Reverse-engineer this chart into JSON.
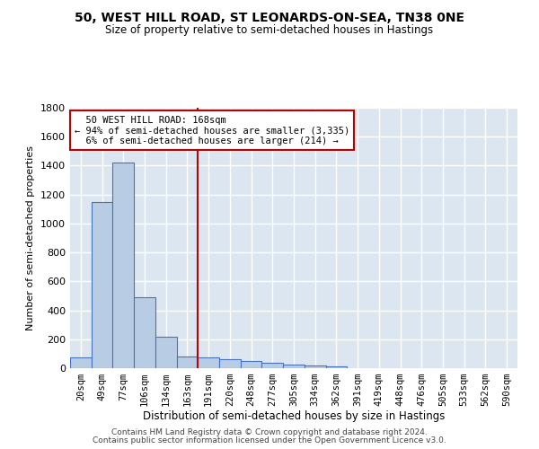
{
  "title": "50, WEST HILL ROAD, ST LEONARDS-ON-SEA, TN38 0NE",
  "subtitle": "Size of property relative to semi-detached houses in Hastings",
  "xlabel": "Distribution of semi-detached houses by size in Hastings",
  "ylabel": "Number of semi-detached properties",
  "categories": [
    "20sqm",
    "49sqm",
    "77sqm",
    "106sqm",
    "134sqm",
    "163sqm",
    "191sqm",
    "220sqm",
    "248sqm",
    "277sqm",
    "305sqm",
    "334sqm",
    "362sqm",
    "391sqm",
    "419sqm",
    "448sqm",
    "476sqm",
    "505sqm",
    "533sqm",
    "562sqm",
    "590sqm"
  ],
  "values": [
    75,
    1150,
    1420,
    490,
    215,
    80,
    75,
    65,
    50,
    35,
    25,
    18,
    15,
    0,
    0,
    0,
    0,
    0,
    0,
    0,
    0
  ],
  "bar_color": "#b8cce4",
  "bar_edge_color": "#4472c4",
  "property_line_x": 5.5,
  "property_label": "50 WEST HILL ROAD: 168sqm",
  "pct_smaller": "94%",
  "n_smaller": "3,335",
  "pct_larger": "6%",
  "n_larger": "214",
  "annotation_line_color": "#c00000",
  "annotation_box_color": "#c00000",
  "ylim": [
    0,
    1800
  ],
  "yticks": [
    0,
    200,
    400,
    600,
    800,
    1000,
    1200,
    1400,
    1600,
    1800
  ],
  "background_color": "#dce6f1",
  "grid_color": "#ffffff",
  "footer1": "Contains HM Land Registry data © Crown copyright and database right 2024.",
  "footer2": "Contains public sector information licensed under the Open Government Licence v3.0."
}
